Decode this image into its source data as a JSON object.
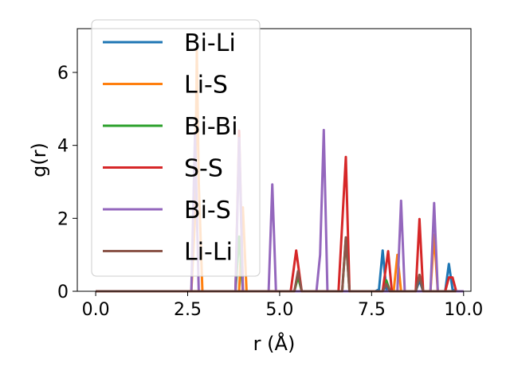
{
  "chart_data": {
    "type": "line",
    "title": "",
    "xlabel": "r (Å)",
    "ylabel": "g(r)",
    "xlim": [
      -0.5,
      10.2
    ],
    "ylim": [
      0,
      7.2
    ],
    "xticks": [
      "0.0",
      "2.5",
      "5.0",
      "7.5",
      "10.0"
    ],
    "xtick_values": [
      0,
      2.5,
      5,
      7.5,
      10
    ],
    "yticks": [
      "0",
      "2",
      "4",
      "6"
    ],
    "ytick_values": [
      0,
      2,
      4,
      6
    ],
    "grid": false,
    "legend_position": "upper-left",
    "series": [
      {
        "name": "Bi-Li",
        "color": "#1f77b4",
        "points": [
          [
            0,
            0
          ],
          [
            7.6,
            0
          ],
          [
            7.7,
            0.05
          ],
          [
            7.8,
            1.12
          ],
          [
            7.9,
            0.05
          ],
          [
            8.0,
            0
          ],
          [
            8.7,
            0
          ],
          [
            8.8,
            0.3
          ],
          [
            8.9,
            0
          ],
          [
            9.5,
            0
          ],
          [
            9.6,
            0.75
          ],
          [
            9.7,
            0.05
          ],
          [
            9.8,
            0
          ]
        ]
      },
      {
        "name": "Li-S",
        "color": "#ff7f0e",
        "points": [
          [
            0,
            0
          ],
          [
            2.6,
            0
          ],
          [
            2.7,
            2.0
          ],
          [
            2.75,
            6.6
          ],
          [
            2.8,
            3.0
          ],
          [
            2.9,
            0
          ],
          [
            3.9,
            0
          ],
          [
            4.0,
            2.3
          ],
          [
            4.1,
            0
          ],
          [
            8.1,
            0
          ],
          [
            8.2,
            1.0
          ],
          [
            8.3,
            0
          ],
          [
            9.1,
            0
          ],
          [
            9.2,
            1.55
          ],
          [
            9.3,
            0
          ],
          [
            10.0,
            0
          ]
        ]
      },
      {
        "name": "Bi-Bi",
        "color": "#2ca02c",
        "points": [
          [
            0,
            0
          ],
          [
            3.8,
            0
          ],
          [
            3.9,
            1.5
          ],
          [
            4.0,
            0
          ],
          [
            5.4,
            0
          ],
          [
            5.5,
            0.4
          ],
          [
            5.6,
            0
          ],
          [
            6.7,
            0
          ],
          [
            6.8,
            1.45
          ],
          [
            6.9,
            0
          ],
          [
            7.8,
            0
          ],
          [
            7.9,
            0.3
          ],
          [
            8.0,
            0
          ],
          [
            8.7,
            0
          ],
          [
            8.8,
            0.45
          ],
          [
            8.9,
            0
          ],
          [
            9.8,
            0
          ]
        ]
      },
      {
        "name": "S-S",
        "color": "#d62728",
        "points": [
          [
            0,
            0
          ],
          [
            3.8,
            0
          ],
          [
            3.9,
            4.4
          ],
          [
            4.0,
            0
          ],
          [
            5.3,
            0
          ],
          [
            5.45,
            1.12
          ],
          [
            5.6,
            0
          ],
          [
            6.6,
            0
          ],
          [
            6.8,
            3.68
          ],
          [
            6.9,
            0
          ],
          [
            7.8,
            0
          ],
          [
            7.95,
            1.1
          ],
          [
            8.05,
            0
          ],
          [
            8.7,
            0
          ],
          [
            8.8,
            1.98
          ],
          [
            8.9,
            0
          ],
          [
            9.5,
            0
          ],
          [
            9.6,
            0.38
          ],
          [
            9.7,
            0.38
          ],
          [
            9.8,
            0
          ]
        ]
      },
      {
        "name": "Bi-S",
        "color": "#9467bd",
        "points": [
          [
            0,
            0
          ],
          [
            2.6,
            0
          ],
          [
            2.7,
            4.3
          ],
          [
            2.8,
            0
          ],
          [
            3.8,
            0
          ],
          [
            3.9,
            4.2
          ],
          [
            4.0,
            0
          ],
          [
            4.7,
            0
          ],
          [
            4.8,
            2.93
          ],
          [
            4.9,
            0
          ],
          [
            6.0,
            0
          ],
          [
            6.1,
            1.0
          ],
          [
            6.2,
            4.42
          ],
          [
            6.3,
            0
          ],
          [
            8.2,
            0
          ],
          [
            8.3,
            2.48
          ],
          [
            8.4,
            0
          ],
          [
            9.1,
            0
          ],
          [
            9.2,
            2.42
          ],
          [
            9.3,
            0
          ],
          [
            10.0,
            0
          ]
        ]
      },
      {
        "name": "Li-Li",
        "color": "#8c564b",
        "points": [
          [
            0,
            0
          ],
          [
            5.4,
            0
          ],
          [
            5.5,
            0.55
          ],
          [
            5.6,
            0
          ],
          [
            6.7,
            0
          ],
          [
            6.8,
            1.48
          ],
          [
            6.9,
            0
          ],
          [
            7.8,
            0
          ],
          [
            7.9,
            0.2
          ],
          [
            8.0,
            0
          ],
          [
            8.7,
            0
          ],
          [
            8.8,
            0.45
          ],
          [
            8.9,
            0
          ],
          [
            9.8,
            0
          ]
        ]
      }
    ]
  }
}
